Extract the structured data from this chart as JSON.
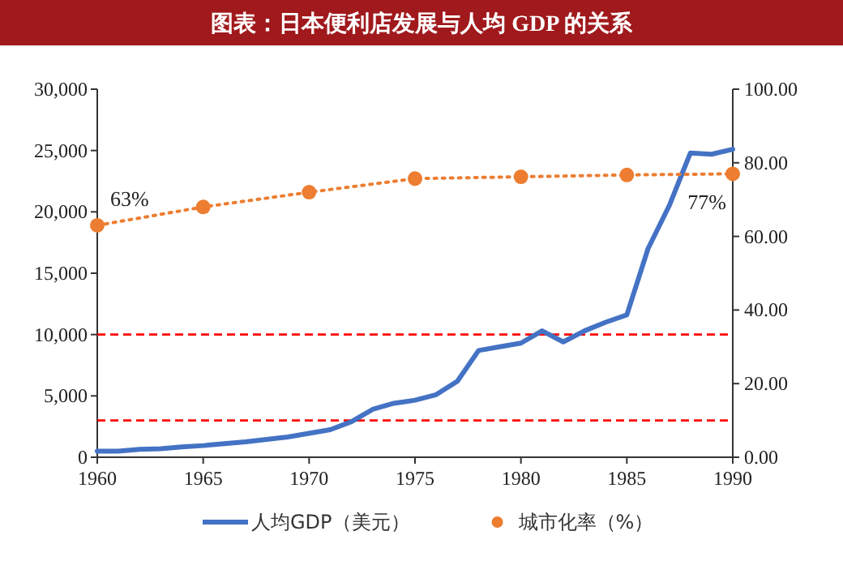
{
  "chart_data": {
    "type": "line",
    "title": "图表：日本便利店发展与人均 GDP 的关系",
    "xlim": [
      1960,
      1990
    ],
    "xticks": [
      1960,
      1965,
      1970,
      1975,
      1980,
      1985,
      1990
    ],
    "ylim": [
      0,
      30000
    ],
    "yticks": [
      {
        "value": 0,
        "label": "0"
      },
      {
        "value": 5000,
        "label": "5,000"
      },
      {
        "value": 10000,
        "label": "10,000"
      },
      {
        "value": 15000,
        "label": "15,000"
      },
      {
        "value": 20000,
        "label": "20,000"
      },
      {
        "value": 25000,
        "label": "25,000"
      },
      {
        "value": 30000,
        "label": "30,000"
      }
    ],
    "y2lim": [
      0,
      100
    ],
    "y2ticks": [
      {
        "value": 0,
        "label": "0.00"
      },
      {
        "value": 20,
        "label": "20.00"
      },
      {
        "value": 40,
        "label": "40.00"
      },
      {
        "value": 60,
        "label": "60.00"
      },
      {
        "value": 80,
        "label": "80.00"
      },
      {
        "value": 100,
        "label": "100.00"
      }
    ],
    "grid": false,
    "legend": "bottom",
    "ref_lines": [
      {
        "axis": "y",
        "value": 10000,
        "color": "#ff0000",
        "line_style": "dashed"
      },
      {
        "axis": "y",
        "value": 3000,
        "color": "#ff0000",
        "line_style": "dashed"
      }
    ],
    "series": [
      {
        "name": "人均GDP（美元）",
        "color": "#4472c4",
        "marker": "none",
        "line_style": "solid",
        "axis": "y",
        "x": [
          1960,
          1961,
          1962,
          1963,
          1964,
          1965,
          1966,
          1967,
          1968,
          1969,
          1970,
          1971,
          1972,
          1973,
          1974,
          1975,
          1976,
          1977,
          1978,
          1979,
          1980,
          1981,
          1982,
          1983,
          1984,
          1985,
          1986,
          1987,
          1988,
          1989,
          1990
        ],
        "values": [
          500,
          500,
          650,
          700,
          850,
          950,
          1100,
          1250,
          1450,
          1650,
          1950,
          2250,
          2900,
          3900,
          4400,
          4650,
          5100,
          6200,
          8700,
          9000,
          9300,
          10300,
          9400,
          10300,
          11000,
          11600,
          17000,
          20500,
          24800,
          24700,
          25100
        ]
      },
      {
        "name": "城市化率（%）",
        "color": "#ed7d31",
        "marker": "circle",
        "line_style": "dotted",
        "axis": "y2",
        "x": [
          1960,
          1965,
          1970,
          1975,
          1980,
          1985,
          1990
        ],
        "values": [
          63,
          68,
          72,
          75.7,
          76.2,
          76.7,
          77
        ],
        "value_labels": [
          "63%",
          null,
          null,
          null,
          null,
          null,
          "77%"
        ]
      }
    ]
  }
}
